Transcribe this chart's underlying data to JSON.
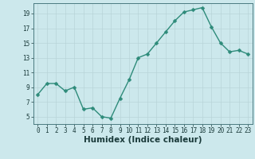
{
  "x": [
    0,
    1,
    2,
    3,
    4,
    5,
    6,
    7,
    8,
    9,
    10,
    11,
    12,
    13,
    14,
    15,
    16,
    17,
    18,
    19,
    20,
    21,
    22,
    23
  ],
  "y": [
    8.0,
    9.5,
    9.5,
    8.5,
    9.0,
    6.0,
    6.2,
    5.0,
    4.8,
    7.5,
    10.0,
    13.0,
    13.5,
    15.0,
    16.5,
    18.0,
    19.2,
    19.5,
    19.8,
    17.2,
    15.0,
    13.8,
    14.0,
    13.5
  ],
  "xlim": [
    -0.5,
    23.5
  ],
  "ylim": [
    4,
    20.4
  ],
  "yticks": [
    5,
    7,
    9,
    11,
    13,
    15,
    17,
    19
  ],
  "xticks": [
    0,
    1,
    2,
    3,
    4,
    5,
    6,
    7,
    8,
    9,
    10,
    11,
    12,
    13,
    14,
    15,
    16,
    17,
    18,
    19,
    20,
    21,
    22,
    23
  ],
  "xlabel": "Humidex (Indice chaleur)",
  "line_color": "#2e8b7a",
  "marker_color": "#2e8b7a",
  "bg_color": "#cce8ec",
  "grid_color": "#b8d4d8",
  "axis_bg": "#cce8ec",
  "tick_label_size": 5.5,
  "xlabel_size": 7.5,
  "marker_size": 2.5,
  "linewidth": 1.0
}
